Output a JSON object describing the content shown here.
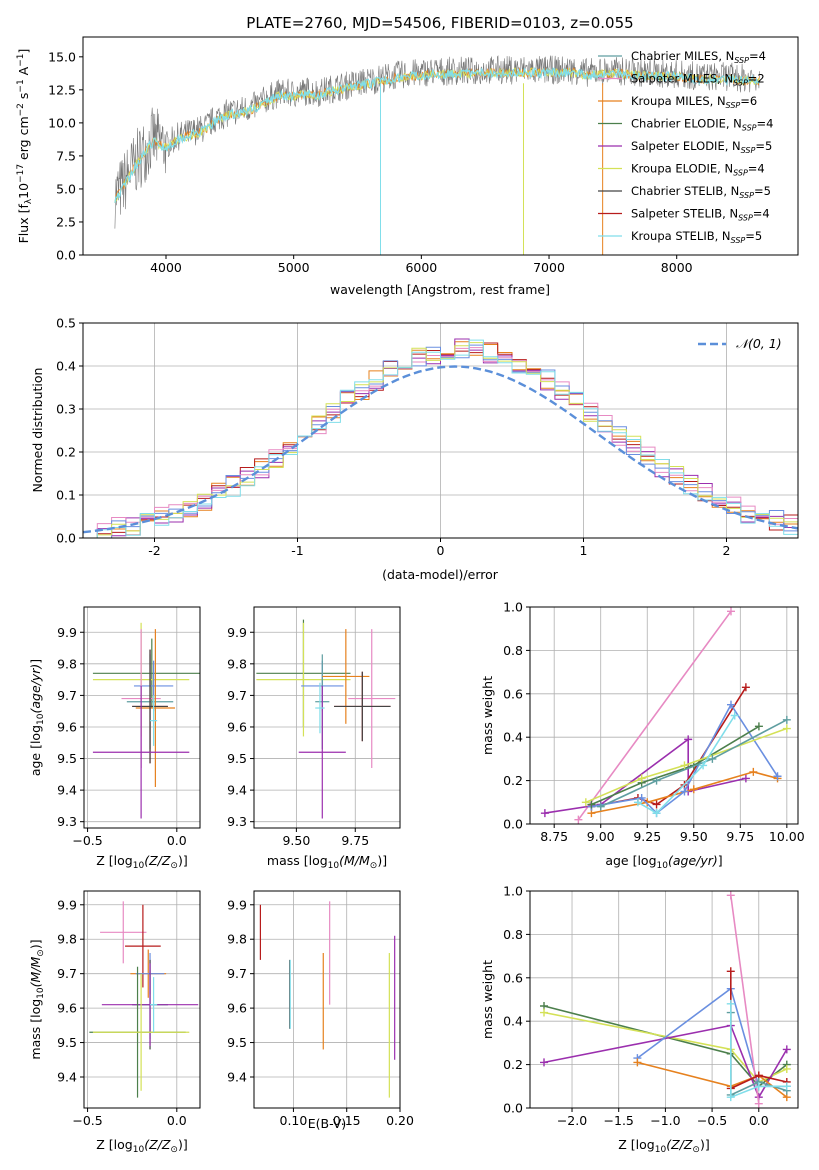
{
  "figure": {
    "title": "PLATE=2760, MJD=54506, FIBERID=0103, z=0.055"
  },
  "chart_data": [
    {
      "id": "spectrum",
      "type": "line",
      "xlabel": "wavelength [Angstrom, rest frame]",
      "ylabel": "Flux [f",
      "ylabel_parts": {
        "main": "Flux [f",
        "lambda": "λ",
        "ten": "10",
        "exp17": "−17",
        "erg": " erg cm",
        "exp2": "−2",
        "s": " s",
        "exp1": "−1",
        "A": " A",
        "exp1b": "−1",
        "close": "]"
      },
      "xlim": [
        3350,
        8950
      ],
      "ylim": [
        0,
        16.5
      ],
      "xticks": [
        4000,
        5000,
        6000,
        7000,
        8000
      ],
      "yticks": [
        0.0,
        2.5,
        5.0,
        7.5,
        10.0,
        12.5,
        15.0
      ],
      "legend_position": "top-right",
      "legend": [
        {
          "label": "Chabrier MILES",
          "nssp": "4",
          "color": "#5f9ea0"
        },
        {
          "label": "Salpeter MILES",
          "nssp": "2",
          "color": "#e78ac3"
        },
        {
          "label": "Kroupa MILES",
          "nssp": "6",
          "color": "#e6811e"
        },
        {
          "label": "Chabrier ELODIE",
          "nssp": "4",
          "color": "#4c7f4c"
        },
        {
          "label": "Salpeter ELODIE",
          "nssp": "5",
          "color": "#9b2fae"
        },
        {
          "label": "Kroupa ELODIE",
          "nssp": "4",
          "color": "#d4e157"
        },
        {
          "label": "Chabrier STELIB",
          "nssp": "5",
          "color": "#444444"
        },
        {
          "label": "Salpeter STELIB",
          "nssp": "4",
          "color": "#b71c1c"
        },
        {
          "label": "Kroupa STELIB",
          "nssp": "5",
          "color": "#80deea"
        }
      ],
      "data_color": "#777777",
      "continuum_points": [
        [
          3600,
          4.5
        ],
        [
          3650,
          5.0
        ],
        [
          3700,
          6.0
        ],
        [
          3800,
          7.5
        ],
        [
          3900,
          8.8
        ],
        [
          4000,
          8.3
        ],
        [
          4100,
          9.0
        ],
        [
          4200,
          9.3
        ],
        [
          4300,
          9.6
        ],
        [
          4400,
          10.4
        ],
        [
          4500,
          10.8
        ],
        [
          4600,
          11.0
        ],
        [
          4700,
          11.3
        ],
        [
          4800,
          11.9
        ],
        [
          4900,
          12.3
        ],
        [
          5000,
          12.2
        ],
        [
          5100,
          12.4
        ],
        [
          5200,
          12.3
        ],
        [
          5300,
          12.6
        ],
        [
          5400,
          12.8
        ],
        [
          5500,
          13.0
        ],
        [
          5600,
          13.2
        ],
        [
          5700,
          13.4
        ],
        [
          5800,
          13.6
        ],
        [
          5900,
          13.7
        ],
        [
          6000,
          13.8
        ],
        [
          6100,
          13.9
        ],
        [
          6200,
          13.9
        ],
        [
          6300,
          13.95
        ],
        [
          6400,
          13.9
        ],
        [
          6500,
          14.0
        ],
        [
          6600,
          14.0
        ],
        [
          6700,
          14.0
        ],
        [
          6800,
          14.05
        ],
        [
          6900,
          14.0
        ],
        [
          7000,
          14.0
        ],
        [
          7100,
          14.0
        ],
        [
          7200,
          14.0
        ],
        [
          7300,
          13.8
        ],
        [
          7400,
          13.9
        ],
        [
          7500,
          13.9
        ],
        [
          7600,
          13.9
        ],
        [
          7700,
          13.8
        ],
        [
          7800,
          13.8
        ],
        [
          7900,
          13.7
        ],
        [
          8000,
          13.7
        ],
        [
          8100,
          13.6
        ],
        [
          8200,
          13.5
        ],
        [
          8300,
          13.5
        ],
        [
          8400,
          13.5
        ],
        [
          8500,
          13.4
        ],
        [
          8600,
          13.4
        ]
      ],
      "dropouts": [
        [
          5680,
          0
        ],
        [
          6800,
          0
        ],
        [
          7420,
          0
        ]
      ]
    },
    {
      "id": "residuals",
      "type": "bar",
      "xlabel": "(data-model)/error",
      "ylabel": "Normed distribution",
      "xlim": [
        -2.5,
        2.5
      ],
      "ylim": [
        0,
        0.5
      ],
      "xticks": [
        -2,
        -1,
        0,
        1,
        2
      ],
      "yticks": [
        0.0,
        0.1,
        0.2,
        0.3,
        0.4,
        0.5
      ],
      "bin_width": 0.1,
      "legend_position": "top-right",
      "normal_label": "𝒩(0, 1)",
      "normal_color": "#5b8fd9",
      "series_colors": [
        "#e6811e",
        "#b71c1c",
        "#9b2fae",
        "#e78ac3",
        "#6a8fe0",
        "#d4e157",
        "#80deea"
      ]
    },
    {
      "id": "age-vs-Z",
      "type": "scatter",
      "xlabel": "Z [log",
      "xlabel_parts": {
        "pre": "Z [log",
        "sub": "10",
        "mid": "(Z/Z",
        "sun": "⊙",
        "post": ")]"
      },
      "ylabel": "age  [log",
      "ylabel_parts": {
        "pre": "age  [log",
        "sub": "10",
        "mid": "(age/yr)",
        "post": "]"
      },
      "xlim": [
        -0.52,
        0.13
      ],
      "ylim": [
        9.28,
        9.98
      ],
      "xticks": [
        -0.5,
        0.0
      ],
      "xtick_labels": [
        "−0.5",
        "0.0"
      ],
      "yticks": [
        9.3,
        9.4,
        9.5,
        9.6,
        9.7,
        9.8,
        9.9
      ],
      "points": [
        {
          "x": -0.14,
          "y": 9.77,
          "xerr": 0.33,
          "yerr": 0.11,
          "color": "#4c7f4c"
        },
        {
          "x": -0.2,
          "y": 9.75,
          "xerr": 0.27,
          "yerr": 0.18,
          "color": "#d4e157"
        },
        {
          "x": -0.13,
          "y": 9.73,
          "xerr": 0.11,
          "yerr": 0.08,
          "color": "#6a8fe0"
        },
        {
          "x": -0.2,
          "y": 9.69,
          "xerr": 0.11,
          "yerr": 0.22,
          "color": "#e78ac3"
        },
        {
          "x": -0.15,
          "y": 9.68,
          "xerr": 0.13,
          "yerr": 0.15,
          "color": "#5f9ea0"
        },
        {
          "x": -0.12,
          "y": 9.66,
          "xerr": 0.11,
          "yerr": 0.25,
          "color": "#e6811e"
        },
        {
          "x": -0.15,
          "y": 9.665,
          "xerr": 0.1,
          "yerr": 0.18,
          "color": "#b71c1c"
        },
        {
          "x": -0.15,
          "y": 9.665,
          "xerr": 0.1,
          "yerr": 0.18,
          "color": "#444444"
        },
        {
          "x": -0.2,
          "y": 9.52,
          "xerr": 0.27,
          "yerr": 0.21,
          "color": "#9b2fae"
        },
        {
          "x": -0.13,
          "y": 9.62,
          "xerr": 0.02,
          "yerr": 0.08,
          "color": "#80deea"
        }
      ]
    },
    {
      "id": "age-vs-mass",
      "type": "scatter",
      "xlabel": "mass [log",
      "xlabel_parts": {
        "pre": "mass [log",
        "sub": "10",
        "mid": "(M/M",
        "sun": "⊙",
        "post": ")]"
      },
      "ylabel": "",
      "xlim": [
        9.32,
        9.94
      ],
      "ylim": [
        9.28,
        9.98
      ],
      "xticks": [
        9.5,
        9.75
      ],
      "xtick_labels": [
        "9.50",
        "9.75"
      ],
      "yticks": [
        9.3,
        9.4,
        9.5,
        9.6,
        9.7,
        9.8,
        9.9
      ],
      "points": [
        {
          "x": 9.53,
          "y": 9.77,
          "xerr": 0.2,
          "yerr": 0.17,
          "color": "#4c7f4c"
        },
        {
          "x": 9.53,
          "y": 9.75,
          "xerr": 0.2,
          "yerr": 0.18,
          "color": "#d4e157"
        },
        {
          "x": 9.61,
          "y": 9.73,
          "xerr": 0.09,
          "yerr": 0.08,
          "color": "#6a8fe0"
        },
        {
          "x": 9.82,
          "y": 9.69,
          "xerr": 0.1,
          "yerr": 0.22,
          "color": "#e78ac3"
        },
        {
          "x": 9.61,
          "y": 9.68,
          "xerr": 0.03,
          "yerr": 0.15,
          "color": "#5f9ea0"
        },
        {
          "x": 9.71,
          "y": 9.76,
          "xerr": 0.1,
          "yerr": 0.15,
          "color": "#e6811e"
        },
        {
          "x": 9.78,
          "y": 9.665,
          "xerr": 0.12,
          "yerr": 0.11,
          "color": "#b71c1c"
        },
        {
          "x": 9.78,
          "y": 9.665,
          "xerr": 0.12,
          "yerr": 0.11,
          "color": "#444444"
        },
        {
          "x": 9.61,
          "y": 9.52,
          "xerr": 0.1,
          "yerr": 0.21,
          "color": "#9b2fae"
        },
        {
          "x": 9.6,
          "y": 9.66,
          "xerr": 0.02,
          "yerr": 0.08,
          "color": "#80deea"
        }
      ]
    },
    {
      "id": "weight-vs-age",
      "type": "line",
      "xlabel": "age  [log",
      "xlabel_parts": {
        "pre": "age  [log",
        "sub": "10",
        "mid": "(age/yr)",
        "post": "]"
      },
      "ylabel": "mass weight",
      "xlim": [
        8.62,
        10.06
      ],
      "ylim": [
        0,
        1.0
      ],
      "xticks": [
        8.75,
        9.0,
        9.25,
        9.5,
        9.75,
        10.0
      ],
      "xtick_labels": [
        "8.75",
        "9.00",
        "9.25",
        "9.50",
        "9.75",
        "10.00"
      ],
      "yticks": [
        0.0,
        0.2,
        0.4,
        0.6,
        0.8,
        1.0
      ],
      "series": [
        {
          "color": "#e78ac3",
          "x": [
            8.88,
            9.7
          ],
          "y": [
            0.02,
            0.98
          ]
        },
        {
          "color": "#9b2fae",
          "x": [
            8.7,
            9.0,
            9.47,
            9.47,
            9.78
          ],
          "y": [
            0.05,
            0.09,
            0.39,
            0.15,
            0.21
          ]
        },
        {
          "color": "#b71c1c",
          "x": [
            8.95,
            9.2,
            9.3,
            9.45,
            9.78
          ],
          "y": [
            0.08,
            0.12,
            0.09,
            0.18,
            0.63
          ]
        },
        {
          "color": "#e6811e",
          "x": [
            8.95,
            9.25,
            9.5,
            9.82,
            9.95
          ],
          "y": [
            0.05,
            0.1,
            0.16,
            0.24,
            0.21
          ]
        },
        {
          "color": "#6a8fe0",
          "x": [
            8.95,
            9.22,
            9.3,
            9.45,
            9.7,
            9.95
          ],
          "y": [
            0.08,
            0.12,
            0.05,
            0.15,
            0.55,
            0.22
          ]
        },
        {
          "color": "#4c7f4c",
          "x": [
            8.95,
            9.22,
            9.5,
            9.85
          ],
          "y": [
            0.09,
            0.19,
            0.27,
            0.45
          ]
        },
        {
          "color": "#d4e157",
          "x": [
            8.92,
            9.22,
            9.45,
            10.0
          ],
          "y": [
            0.1,
            0.21,
            0.27,
            0.44
          ]
        },
        {
          "color": "#5f9ea0",
          "x": [
            9.0,
            9.3,
            9.6,
            10.0
          ],
          "y": [
            0.08,
            0.2,
            0.3,
            0.48
          ]
        },
        {
          "color": "#80deea",
          "x": [
            9.2,
            9.3,
            9.55,
            9.72
          ],
          "y": [
            0.1,
            0.05,
            0.27,
            0.5
          ]
        }
      ]
    },
    {
      "id": "mass-vs-Z",
      "type": "scatter",
      "xlabel": "Z [log",
      "xlabel_parts": {
        "pre": "Z [log",
        "sub": "10",
        "mid": "(Z/Z",
        "sun": "⊙",
        "post": ")]"
      },
      "ylabel": "mass [log",
      "ylabel_parts": {
        "pre": "mass [log",
        "sub": "10",
        "mid": "(M/M",
        "sun": "⊙",
        "post": ")]"
      },
      "xlim": [
        -0.52,
        0.13
      ],
      "ylim": [
        9.31,
        9.94
      ],
      "xticks": [
        -0.5,
        0.0
      ],
      "xtick_labels": [
        "−0.5",
        "0.0"
      ],
      "yticks": [
        9.4,
        9.5,
        9.6,
        9.7,
        9.8,
        9.9
      ],
      "points": [
        {
          "x": -0.3,
          "y": 9.82,
          "xerr": 0.13,
          "yerr": 0.09,
          "color": "#e78ac3"
        },
        {
          "x": -0.19,
          "y": 9.78,
          "xerr": 0.1,
          "yerr": 0.12,
          "color": "#b71c1c"
        },
        {
          "x": -0.16,
          "y": 9.7,
          "xerr": 0.1,
          "yerr": 0.07,
          "color": "#e6811e"
        },
        {
          "x": -0.15,
          "y": 9.7,
          "xerr": 0.08,
          "yerr": 0.06,
          "color": "#6a8fe0"
        },
        {
          "x": -0.15,
          "y": 9.61,
          "xerr": 0.1,
          "yerr": 0.13,
          "color": "#444444"
        },
        {
          "x": -0.15,
          "y": 9.61,
          "xerr": 0.1,
          "yerr": 0.1,
          "color": "#5f9ea0"
        },
        {
          "x": -0.15,
          "y": 9.61,
          "xerr": 0.27,
          "yerr": 0.12,
          "color": "#9b2fae"
        },
        {
          "x": -0.22,
          "y": 9.53,
          "xerr": 0.27,
          "yerr": 0.19,
          "color": "#4c7f4c"
        },
        {
          "x": -0.2,
          "y": 9.53,
          "xerr": 0.27,
          "yerr": 0.17,
          "color": "#d4e157"
        },
        {
          "x": -0.13,
          "y": 9.61,
          "xerr": 0.02,
          "yerr": 0.08,
          "color": "#80deea"
        }
      ]
    },
    {
      "id": "mass-vs-ebv",
      "type": "scatter",
      "xlabel": "E(B-V)",
      "ylabel": "",
      "xlim": [
        0.063,
        0.2
      ],
      "ylim": [
        9.31,
        9.94
      ],
      "xticks": [
        0.1,
        0.15,
        0.2
      ],
      "xtick_labels": [
        "0.10",
        "0.15",
        "0.20"
      ],
      "yticks": [
        9.4,
        9.5,
        9.6,
        9.7,
        9.8,
        9.9
      ],
      "points": [
        {
          "x": 0.069,
          "y": 9.82,
          "xerr": 0,
          "yerr": 0.08,
          "color": "#b71c1c"
        },
        {
          "x": 0.0965,
          "y": 9.64,
          "xerr": 0,
          "yerr": 0.1,
          "color": "#444444"
        },
        {
          "x": 0.097,
          "y": 9.64,
          "xerr": 0,
          "yerr": 0.1,
          "color": "#80deea"
        },
        {
          "x": 0.128,
          "y": 9.62,
          "xerr": 0,
          "yerr": 0.14,
          "color": "#e6811e"
        },
        {
          "x": 0.134,
          "y": 9.76,
          "xerr": 0,
          "yerr": 0.15,
          "color": "#e78ac3"
        },
        {
          "x": 0.19,
          "y": 9.55,
          "xerr": 0,
          "yerr": 0.21,
          "color": "#d4e157"
        },
        {
          "x": 0.195,
          "y": 9.63,
          "xerr": 0,
          "yerr": 0.18,
          "color": "#9b2fae"
        }
      ]
    },
    {
      "id": "weight-vs-Z",
      "type": "line",
      "xlabel": "Z [log",
      "xlabel_parts": {
        "pre": "Z [log",
        "sub": "10",
        "mid": "(Z/Z",
        "sun": "⊙",
        "post": ")]"
      },
      "ylabel": "mass weight",
      "xlim": [
        -2.45,
        0.42
      ],
      "ylim": [
        0,
        1.0
      ],
      "xticks": [
        -2.0,
        -1.5,
        -1.0,
        -0.5,
        0.0
      ],
      "xtick_labels": [
        "−2.0",
        "−1.5",
        "−1.0",
        "−0.5",
        "0.0"
      ],
      "yticks": [
        0.0,
        0.2,
        0.4,
        0.6,
        0.8,
        1.0
      ],
      "series": [
        {
          "color": "#4c7f4c",
          "x": [
            -2.3,
            -0.3,
            0.0,
            0.3
          ],
          "y": [
            0.47,
            0.25,
            0.1,
            0.2
          ]
        },
        {
          "color": "#d4e157",
          "x": [
            -2.3,
            -0.3,
            0.0,
            0.3
          ],
          "y": [
            0.44,
            0.27,
            0.12,
            0.18
          ]
        },
        {
          "color": "#9b2fae",
          "x": [
            -2.3,
            -0.3,
            0.0,
            0.3
          ],
          "y": [
            0.21,
            0.38,
            0.05,
            0.27
          ]
        },
        {
          "color": "#6a8fe0",
          "x": [
            -1.3,
            -0.3,
            0.0,
            0.3
          ],
          "y": [
            0.23,
            0.55,
            0.1,
            0.1
          ]
        },
        {
          "color": "#e6811e",
          "x": [
            -1.3,
            -0.3,
            0.0,
            0.3
          ],
          "y": [
            0.21,
            0.1,
            0.15,
            0.05
          ]
        },
        {
          "color": "#e78ac3",
          "x": [
            -0.3,
            0.0
          ],
          "y": [
            0.98,
            0.02
          ]
        },
        {
          "color": "#b71c1c",
          "x": [
            -0.3,
            -0.3,
            0.0,
            0.3
          ],
          "y": [
            0.63,
            0.09,
            0.15,
            0.12
          ]
        },
        {
          "color": "#5f9ea0",
          "x": [
            -0.3,
            -0.3,
            0.0,
            0.3
          ],
          "y": [
            0.44,
            0.06,
            0.12,
            0.08
          ]
        },
        {
          "color": "#80deea",
          "x": [
            -0.3,
            -0.3,
            0.0,
            0.3
          ],
          "y": [
            0.48,
            0.05,
            0.1,
            0.1
          ]
        }
      ]
    }
  ]
}
